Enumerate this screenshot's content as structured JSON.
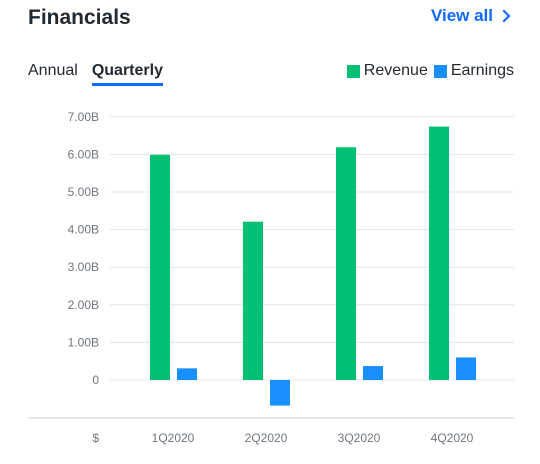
{
  "header": {
    "title": "Financials",
    "view_all": "View all"
  },
  "tabs": [
    {
      "label": "Annual",
      "active": false
    },
    {
      "label": "Quarterly",
      "active": true
    }
  ],
  "colors": {
    "revenue": "#00c073",
    "earnings": "#188fff",
    "accent": "#0f69ff",
    "grid": "#e0e4e9"
  },
  "icons": {
    "view_all": "chevron-right-icon"
  },
  "chart_data": {
    "type": "bar",
    "categories": [
      "1Q2020",
      "2Q2020",
      "3Q2020",
      "4Q2020"
    ],
    "series": [
      {
        "name": "Revenue",
        "values": [
          5.99,
          4.21,
          6.19,
          6.74
        ]
      },
      {
        "name": "Earnings",
        "values": [
          0.31,
          -0.68,
          0.37,
          0.6
        ]
      }
    ],
    "y_ticks": [
      "0",
      "1.00B",
      "2.00B",
      "3.00B",
      "4.00B",
      "5.00B",
      "6.00B",
      "7.00B"
    ],
    "ylim": [
      -0.7,
      7
    ],
    "ylabel": "$",
    "unit": "B",
    "legend": "top-right",
    "grid": true
  }
}
